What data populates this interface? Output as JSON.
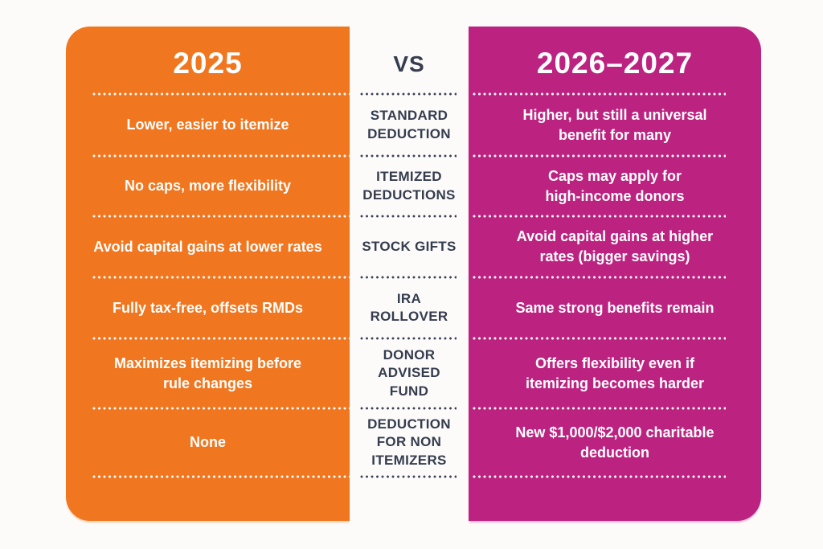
{
  "colors": {
    "left_card": "#F0761F",
    "right_card": "#BC2381",
    "category_text": "#343C4E",
    "card_text": "#FFFFFF",
    "background": "#FCFBFA"
  },
  "chart_data": {
    "type": "table",
    "title": "2025 vs 2026–2027 charitable giving tax comparison",
    "left_header": "2025",
    "vs_label": "VS",
    "right_header": "2026–2027",
    "rows": [
      {
        "category": "STANDARD\nDEDUCTION",
        "y2025": "Lower, easier to itemize",
        "y2026_2027": "Higher, but still a universal\nbenefit for many"
      },
      {
        "category": "ITEMIZED\nDEDUCTIONS",
        "y2025": "No caps, more flexibility",
        "y2026_2027": "Caps may apply for\nhigh-income donors"
      },
      {
        "category": "STOCK GIFTS",
        "y2025": "Avoid capital gains at lower rates",
        "y2026_2027": "Avoid capital gains at higher\nrates (bigger savings)"
      },
      {
        "category": "IRA\nROLLOVER",
        "y2025": "Fully tax-free, offsets RMDs",
        "y2026_2027": "Same strong benefits remain"
      },
      {
        "category": "DONOR\nADVISED\nFUND",
        "y2025": "Maximizes itemizing before\nrule changes",
        "y2026_2027": "Offers flexibility even if\nitemizing becomes harder"
      },
      {
        "category": "DEDUCTION\nFOR NON\nITEMIZERS",
        "y2025": "None",
        "y2026_2027": "New $1,000/$2,000 charitable\ndeduction"
      }
    ]
  }
}
